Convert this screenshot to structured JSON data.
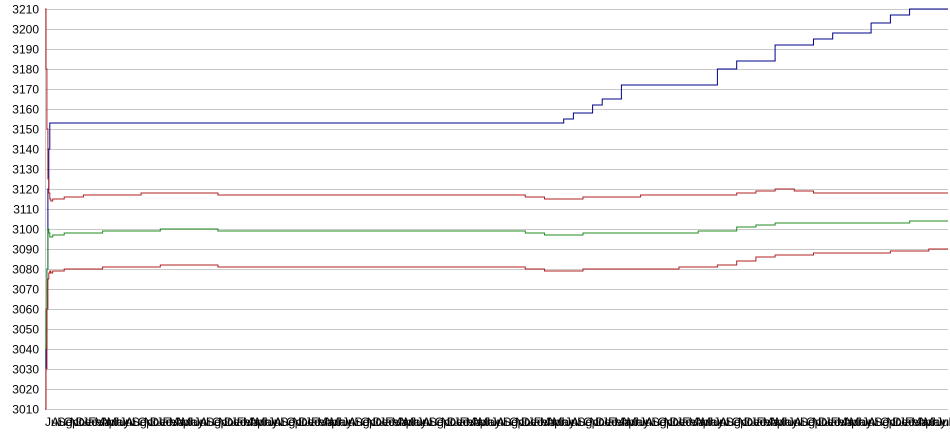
{
  "chart_data": {
    "type": "line",
    "title": "",
    "xlabel": "",
    "ylabel": "",
    "ylim": [
      3010,
      3210
    ],
    "y_ticks": [
      3210,
      3200,
      3190,
      3180,
      3170,
      3160,
      3150,
      3140,
      3130,
      3120,
      3110,
      3100,
      3090,
      3080,
      3070,
      3060,
      3050,
      3040,
      3030,
      3020,
      3010
    ],
    "grid": "horizontal",
    "legend": "none",
    "x_tick_labels": [
      "Jul",
      "Aug",
      "Sep",
      "Oct",
      "Nov",
      "Dec",
      "Jan",
      "Feb",
      "Mar",
      "Apr",
      "May",
      "Jun",
      "Jul",
      "Aug",
      "Sep",
      "Oct",
      "Nov",
      "Dec",
      "Jan",
      "Feb",
      "Mar",
      "Apr",
      "May",
      "Jun",
      "Jul",
      "Aug",
      "Sep",
      "Oct",
      "Nov",
      "Dec",
      "Jan",
      "Feb",
      "Mar",
      "Apr",
      "May",
      "Jun",
      "Jul",
      "Aug",
      "Sep",
      "Oct",
      "Nov",
      "Dec",
      "Jan",
      "Feb",
      "Mar",
      "Apr",
      "May",
      "Jun",
      "Jul",
      "Aug",
      "Sep",
      "Oct",
      "Nov",
      "Dec",
      "Jan",
      "Feb",
      "Mar",
      "Apr",
      "May",
      "Jun",
      "Jul",
      "Aug",
      "Sep",
      "Oct",
      "Nov",
      "Dec",
      "Jan",
      "Feb",
      "Mar",
      "Apr",
      "May",
      "Jun",
      "Jul",
      "Aug",
      "Sep",
      "Oct",
      "Nov",
      "Dec",
      "Jan",
      "Feb",
      "Mar",
      "Apr",
      "May",
      "Jun",
      "Jul",
      "Aug",
      "Sep",
      "Oct",
      "Nov",
      "Dec",
      "Jan",
      "Feb",
      "Mar",
      "Apr",
      "May",
      "Jun",
      "Jul",
      "Aug",
      "Sep",
      "Oct",
      "Nov",
      "Dec",
      "Jan",
      "Feb",
      "Mar",
      "Apr",
      "May",
      "Jun",
      "Jul",
      "Aug",
      "Sep",
      "Oct",
      "Nov",
      "Dec",
      "Jan",
      "Feb",
      "Mar",
      "Apr",
      "May",
      "Jun",
      "Jul",
      "Aug",
      "Sep",
      "Oct",
      "Nov",
      "Dec",
      "Jan",
      "Feb",
      "Mar",
      "Apr",
      "May",
      "Jun",
      "Jul",
      "Aug",
      "Sep",
      "Oct",
      "Nov",
      "Dec",
      "Jan",
      "Feb",
      "Mar",
      "Apr",
      "May",
      "Jun",
      "Jul"
    ],
    "x": [
      0,
      1,
      2,
      3,
      4,
      5,
      6,
      8,
      12,
      20,
      40,
      60,
      80,
      100,
      120,
      140,
      160,
      180,
      200,
      220,
      240,
      260,
      280,
      300,
      320,
      340,
      360,
      380,
      400,
      420,
      440,
      460,
      480,
      500,
      510,
      520,
      530,
      540,
      550,
      560,
      570,
      580,
      600,
      620,
      640,
      660,
      680,
      700,
      720,
      740,
      760,
      780,
      800,
      820,
      840,
      860,
      880,
      900,
      920,
      940
    ],
    "series": [
      {
        "color": "#00008b",
        "values": [
          3010,
          3040,
          3080,
          3120,
          3140,
          3153,
          3153,
          3153,
          3153,
          3153,
          3153,
          3153,
          3153,
          3153,
          3153,
          3153,
          3153,
          3153,
          3153,
          3153,
          3153,
          3153,
          3153,
          3153,
          3153,
          3153,
          3153,
          3153,
          3153,
          3153,
          3153,
          3153,
          3153,
          3153,
          3153,
          3153,
          3153,
          3155,
          3158,
          3158,
          3162,
          3165,
          3172,
          3172,
          3172,
          3172,
          3172,
          3180,
          3184,
          3184,
          3192,
          3192,
          3195,
          3198,
          3198,
          3203,
          3207,
          3210,
          3210,
          3210
        ]
      },
      {
        "color": "#b22222",
        "values": [
          3210,
          3180,
          3150,
          3125,
          3118,
          3115,
          3114,
          3115,
          3115,
          3116,
          3117,
          3117,
          3117,
          3118,
          3118,
          3118,
          3118,
          3117,
          3117,
          3117,
          3117,
          3117,
          3117,
          3117,
          3117,
          3117,
          3117,
          3117,
          3117,
          3117,
          3117,
          3117,
          3117,
          3116,
          3116,
          3115,
          3115,
          3115,
          3115,
          3116,
          3116,
          3116,
          3116,
          3117,
          3117,
          3117,
          3117,
          3117,
          3118,
          3119,
          3120,
          3119,
          3118,
          3118,
          3118,
          3118,
          3118,
          3118,
          3118,
          3118
        ]
      },
      {
        "color": "#228b22",
        "values": [
          3040,
          3060,
          3080,
          3100,
          3098,
          3096,
          3096,
          3097,
          3097,
          3098,
          3098,
          3099,
          3099,
          3099,
          3100,
          3100,
          3100,
          3099,
          3099,
          3099,
          3099,
          3099,
          3099,
          3099,
          3099,
          3099,
          3099,
          3099,
          3099,
          3099,
          3099,
          3099,
          3099,
          3098,
          3098,
          3097,
          3097,
          3097,
          3097,
          3098,
          3098,
          3098,
          3098,
          3098,
          3098,
          3098,
          3099,
          3099,
          3101,
          3102,
          3103,
          3103,
          3103,
          3103,
          3103,
          3103,
          3103,
          3104,
          3104,
          3104
        ]
      },
      {
        "color": "#b22222",
        "values": [
          3010,
          3030,
          3060,
          3075,
          3078,
          3079,
          3078,
          3079,
          3079,
          3080,
          3080,
          3081,
          3081,
          3081,
          3082,
          3082,
          3082,
          3081,
          3081,
          3081,
          3081,
          3081,
          3081,
          3081,
          3081,
          3081,
          3081,
          3081,
          3081,
          3081,
          3081,
          3081,
          3081,
          3080,
          3080,
          3079,
          3079,
          3079,
          3079,
          3080,
          3080,
          3080,
          3080,
          3080,
          3080,
          3081,
          3081,
          3082,
          3084,
          3086,
          3087,
          3087,
          3088,
          3088,
          3088,
          3088,
          3089,
          3089,
          3090,
          3090
        ]
      }
    ]
  }
}
